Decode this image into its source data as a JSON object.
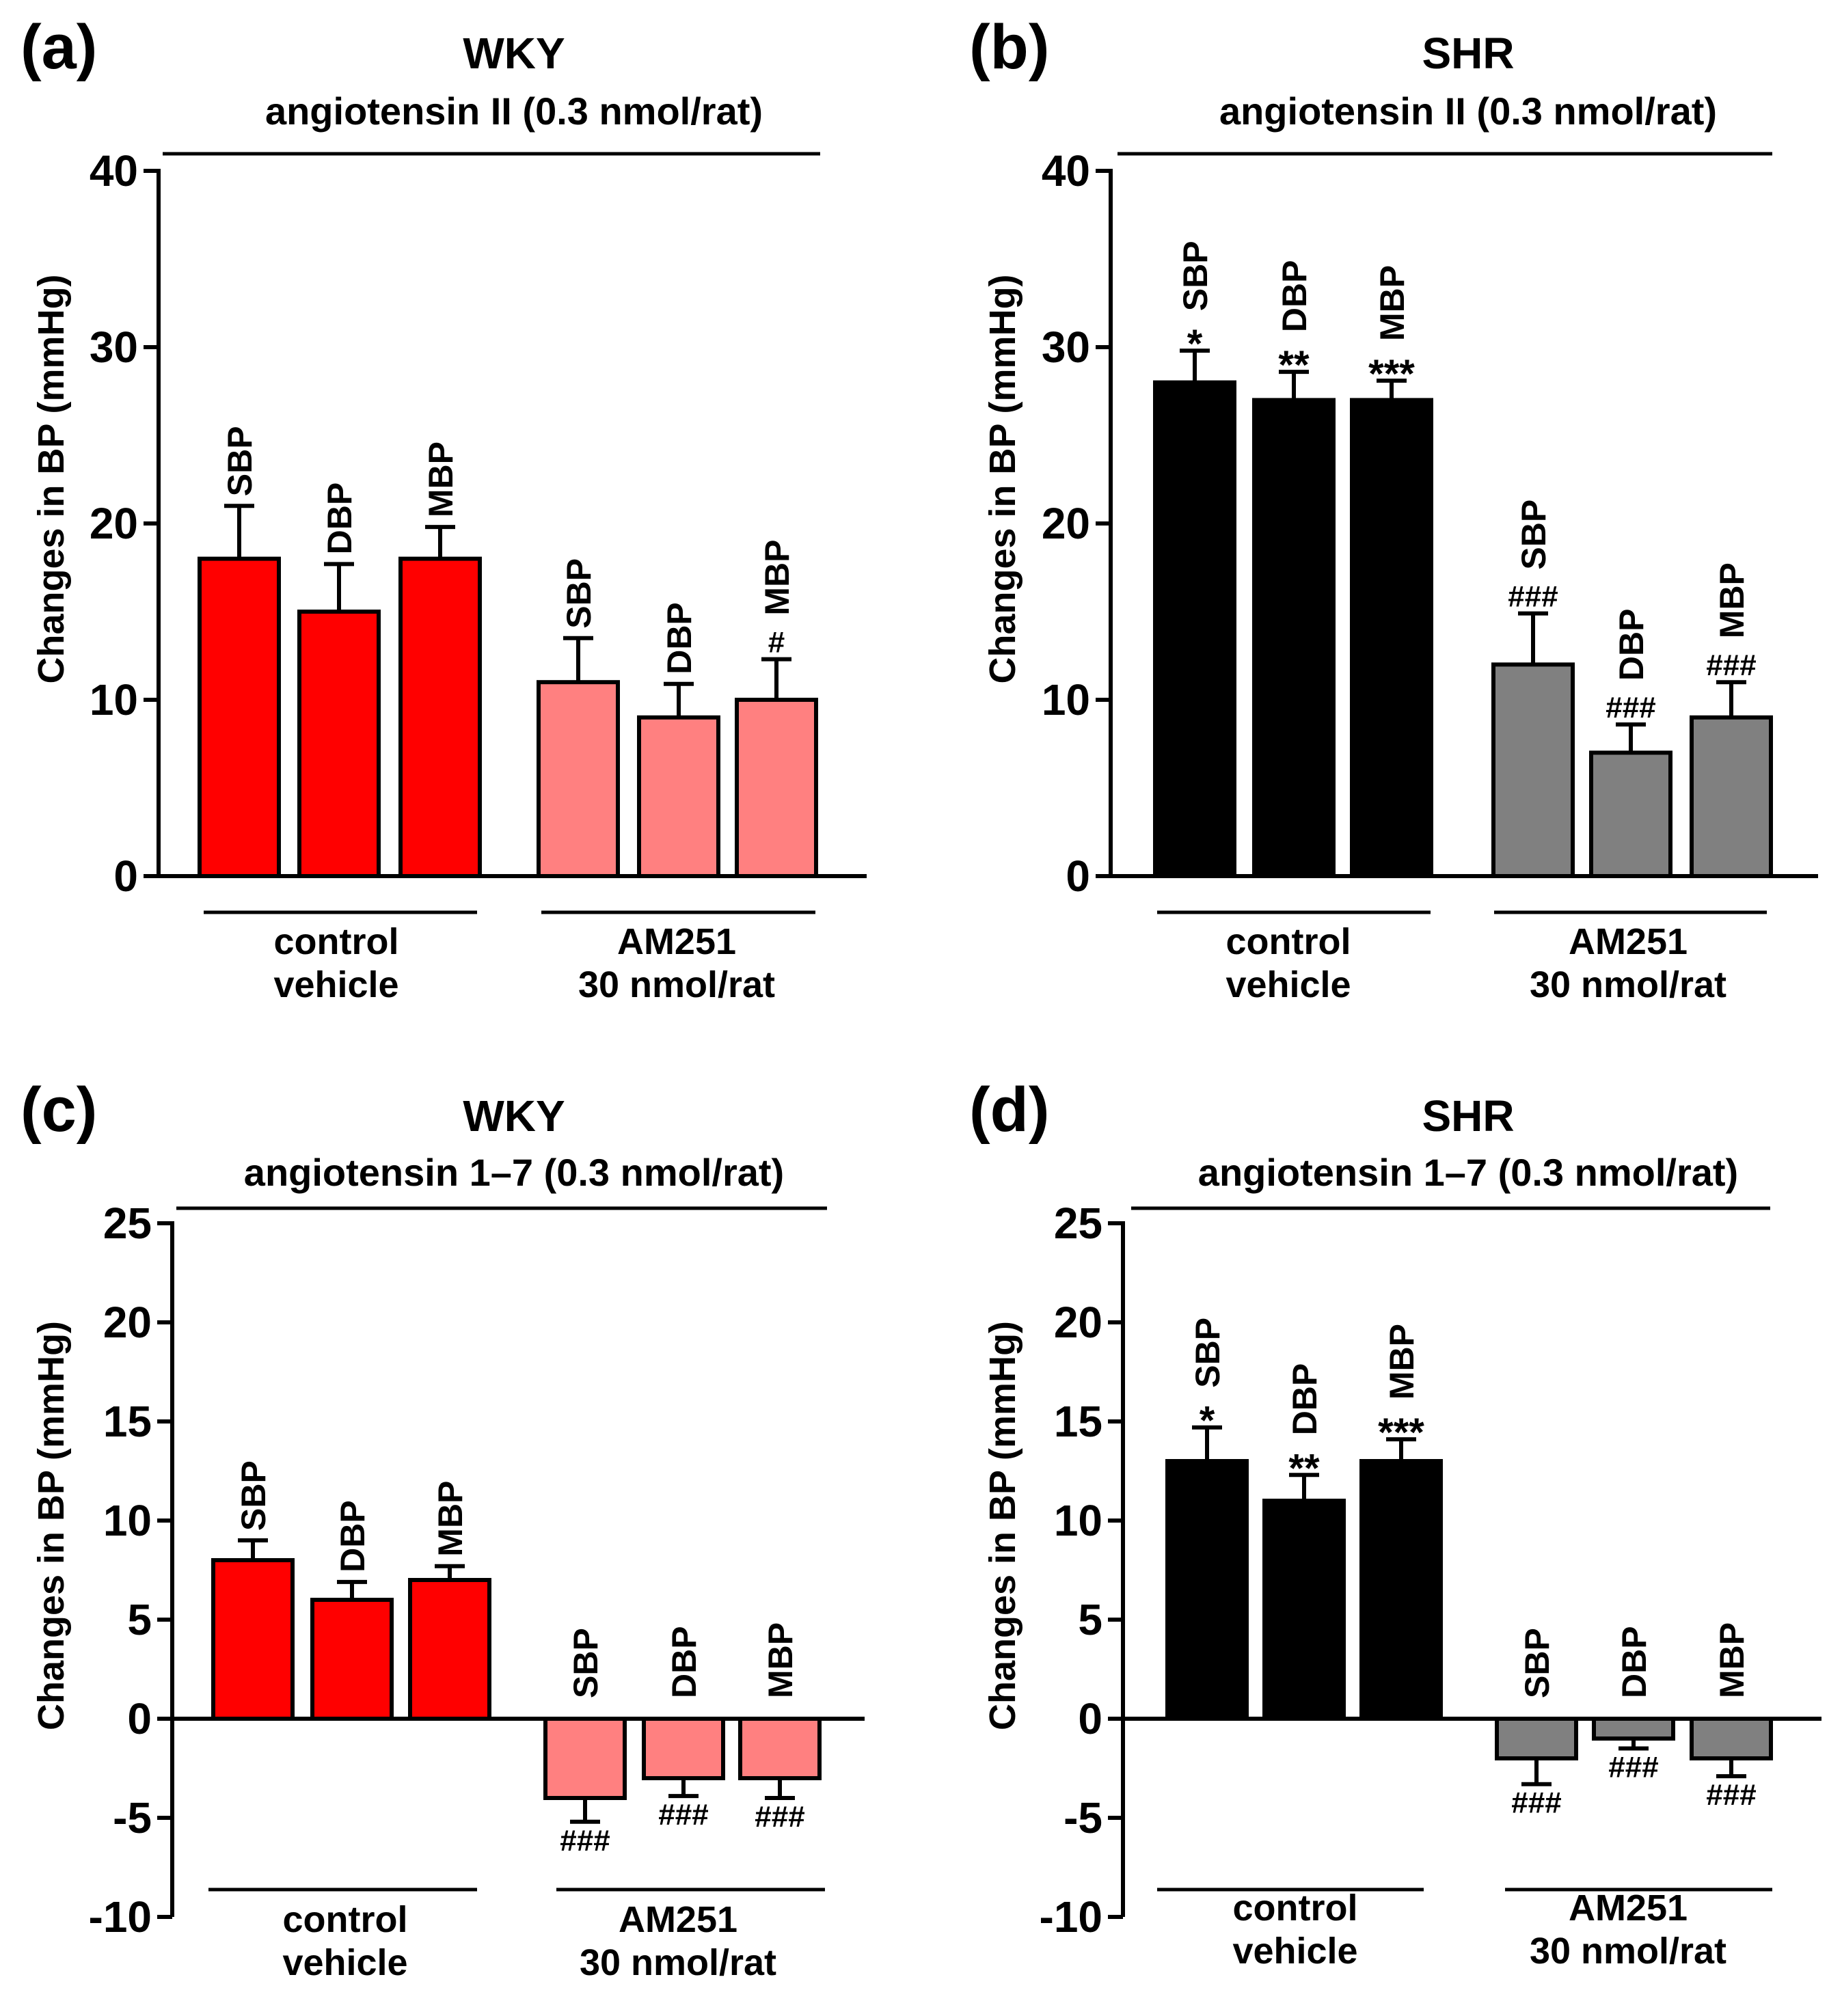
{
  "figure": {
    "groups": [
      "control\nvehicle",
      "AM251\n30 nmol/rat"
    ],
    "bar_labels": [
      "SBP",
      "DBP",
      "MBP"
    ],
    "ylabel": "Changes in BP (mmHg)"
  },
  "colors": {
    "wky_control": "#ff0000",
    "wky_am251": "#ff8080",
    "shr_control": "#000000",
    "shr_am251": "#808080",
    "axis": "#000000"
  },
  "chart_data": [
    {
      "type": "bar",
      "panel_label": "(a)",
      "title": "WKY",
      "subtitle": "angiotensin II (0.3 nmol/rat)",
      "ylabel": "Changes in BP (mmHg)",
      "ylim": [
        0,
        40
      ],
      "yticks": [
        "0",
        "10",
        "20",
        "30",
        "40"
      ],
      "categories": [
        "SBP",
        "DBP",
        "MBP"
      ],
      "series": [
        {
          "name": "control vehicle",
          "values": [
            18,
            15,
            18
          ],
          "errors": [
            3,
            2.7,
            1.8
          ],
          "color": "#ff0000",
          "annotations": [
            "",
            "",
            ""
          ]
        },
        {
          "name": "AM251 30 nmol/rat",
          "values": [
            11,
            9,
            10
          ],
          "errors": [
            2.5,
            1.9,
            2.3
          ],
          "color": "#ff8080",
          "annotations": [
            "",
            "",
            "#"
          ]
        }
      ]
    },
    {
      "type": "bar",
      "panel_label": "(b)",
      "title": "SHR",
      "subtitle": "angiotensin II (0.3 nmol/rat)",
      "ylabel": "Changes in BP (mmHg)",
      "ylim": [
        0,
        40
      ],
      "yticks": [
        "0",
        "10",
        "20",
        "30",
        "40"
      ],
      "categories": [
        "SBP",
        "DBP",
        "MBP"
      ],
      "series": [
        {
          "name": "control vehicle",
          "values": [
            28,
            27,
            27
          ],
          "errors": [
            1.8,
            1.6,
            1.1
          ],
          "color": "#000000",
          "annotations": [
            "*",
            "**",
            "***"
          ]
        },
        {
          "name": "AM251 30 nmol/rat",
          "values": [
            12,
            7,
            9
          ],
          "errors": [
            2.9,
            1.6,
            2.0
          ],
          "color": "#808080",
          "annotations": [
            "###",
            "###",
            "###"
          ]
        }
      ]
    },
    {
      "type": "bar",
      "panel_label": "(c)",
      "title": "WKY",
      "subtitle": "angiotensin 1–7 (0.3 nmol/rat)",
      "ylabel": "Changes in BP (mmHg)",
      "ylim": [
        -10,
        25
      ],
      "yticks": [
        "-10",
        "-5",
        "0",
        "5",
        "10",
        "15",
        "20",
        "25"
      ],
      "categories": [
        "SBP",
        "DBP",
        "MBP"
      ],
      "series": [
        {
          "name": "control vehicle",
          "values": [
            8,
            6,
            7
          ],
          "errors": [
            1.0,
            0.9,
            0.7
          ],
          "color": "#ff0000",
          "annotations": [
            "",
            "",
            ""
          ]
        },
        {
          "name": "AM251 30 nmol/rat",
          "values": [
            -4,
            -3,
            -3
          ],
          "errors": [
            1.2,
            0.9,
            1.0
          ],
          "color": "#ff8080",
          "annotations": [
            "###",
            "###",
            "###"
          ]
        }
      ]
    },
    {
      "type": "bar",
      "panel_label": "(d)",
      "title": "SHR",
      "subtitle": "angiotensin 1–7 (0.3 nmol/rat)",
      "ylabel": "Changes in BP (mmHg)",
      "ylim": [
        -10,
        25
      ],
      "yticks": [
        "-10",
        "-5",
        "0",
        "5",
        "10",
        "15",
        "20",
        "25"
      ],
      "categories": [
        "SBP",
        "DBP",
        "MBP"
      ],
      "series": [
        {
          "name": "control vehicle",
          "values": [
            13,
            11,
            13
          ],
          "errors": [
            1.7,
            1.3,
            1.1
          ],
          "color": "#000000",
          "annotations": [
            "*",
            "**",
            "***"
          ]
        },
        {
          "name": "AM251 30 nmol/rat",
          "values": [
            -2,
            -1,
            -2
          ],
          "errors": [
            1.3,
            0.5,
            0.9
          ],
          "color": "#808080",
          "annotations": [
            "###",
            "###",
            "###"
          ]
        }
      ]
    }
  ]
}
